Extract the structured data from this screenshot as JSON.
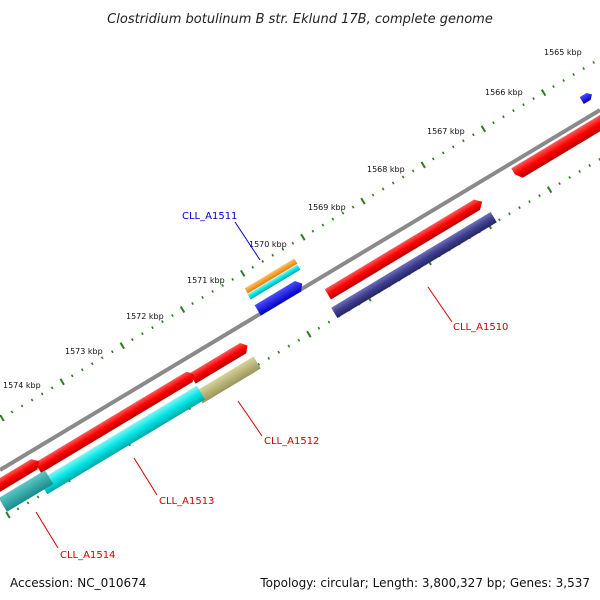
{
  "title": "Clostridium botulinum B str. Eklund 17B, complete genome",
  "footer": {
    "accession": "Accession: NC_010674",
    "summary": "Topology: circular; Length: 3,800,327 bp; Genes: 3,537"
  },
  "ticks": [
    {
      "label": "1565 kbp"
    },
    {
      "label": "1566 kbp"
    },
    {
      "label": "1567 kbp"
    },
    {
      "label": "1568 kbp"
    },
    {
      "label": "1569 kbp"
    },
    {
      "label": "1570 kbp"
    },
    {
      "label": "1571 kbp"
    },
    {
      "label": "1572 kbp"
    },
    {
      "label": "1573 kbp"
    },
    {
      "label": "1574 kbp"
    }
  ],
  "features": [
    {
      "name": "CLL_A1510",
      "color": "#ff0000"
    },
    {
      "name": "CLL_A1511",
      "color": "#0000ff"
    },
    {
      "name": "CLL_A1512",
      "color": "#ff0000"
    },
    {
      "name": "CLL_A1513",
      "color": "#ff0000"
    },
    {
      "name": "CLL_A1514",
      "color": "#ff0000"
    }
  ],
  "colors": {
    "cds_forward": "#ff0000",
    "cds_reverse": "#ff0000",
    "gene_product_a": "#00e5e5",
    "gene_product_b": "#3d3d8f",
    "gene_product_c": "#b5b070",
    "small_gene": "#0000ff",
    "orange_feature": "#ff9900",
    "backbone": "#808080",
    "tick_major": "#2e7d1f",
    "tick_minor": "#2e7d1f"
  }
}
